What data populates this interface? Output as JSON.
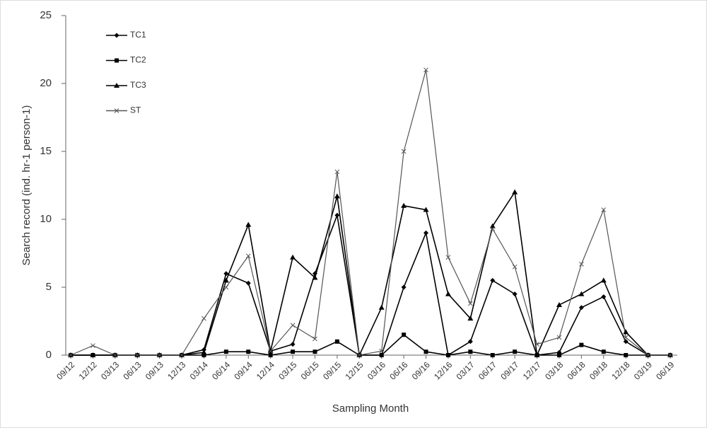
{
  "chart_data": {
    "type": "line",
    "y_label": "Search record (ind. hr-1 person-1)",
    "x_label": "Sampling Month",
    "categories": [
      "09/12",
      "12/12",
      "03/13",
      "06/13",
      "09/13",
      "12/13",
      "03/14",
      "06/14",
      "09/14",
      "12/14",
      "03/15",
      "06/15",
      "09/15",
      "12/15",
      "03/16",
      "06/16",
      "09/16",
      "12/16",
      "03/17",
      "06/17",
      "09/17",
      "12/17",
      "03/18",
      "06/18",
      "09/18",
      "12/18",
      "03/19",
      "06/19"
    ],
    "series": [
      {
        "name": "TC1",
        "color": "#000000",
        "marker": "diamond",
        "values": [
          0,
          0,
          0,
          0,
          0,
          0,
          0.4,
          6,
          5.3,
          0.3,
          0.8,
          6,
          10.3,
          0,
          0,
          5,
          9,
          0,
          1,
          5.5,
          4.5,
          0,
          0.2,
          3.5,
          4.3,
          1,
          0,
          0
        ]
      },
      {
        "name": "TC2",
        "color": "#000000",
        "marker": "square",
        "values": [
          0,
          0,
          0,
          0,
          0,
          0,
          0,
          0.25,
          0.25,
          0,
          0.25,
          0.25,
          1,
          0,
          0,
          1.5,
          0.25,
          0,
          0.25,
          0,
          0.25,
          0,
          0,
          0.75,
          0.25,
          0,
          0,
          0
        ]
      },
      {
        "name": "TC3",
        "color": "#000000",
        "marker": "triangle",
        "values": [
          0,
          0,
          0,
          0,
          0,
          0,
          0.2,
          5.5,
          9.6,
          0.3,
          7.2,
          5.7,
          11.7,
          0,
          3.5,
          11,
          10.7,
          4.5,
          2.7,
          9.5,
          12,
          0,
          3.7,
          4.5,
          5.5,
          1.7,
          0,
          0
        ]
      },
      {
        "name": "ST",
        "color": "#555555",
        "marker": "x",
        "values": [
          0,
          0.7,
          0,
          0,
          0,
          0,
          2.7,
          5,
          7.3,
          0.3,
          2.2,
          1.2,
          13.5,
          0,
          0.3,
          15,
          21,
          7.2,
          3.8,
          9.3,
          6.5,
          0.8,
          1.3,
          6.7,
          10.7,
          1.3,
          0,
          0
        ]
      }
    ],
    "ylim": [
      0,
      25
    ],
    "yticks": [
      0,
      5,
      10,
      15,
      20,
      25
    ],
    "grid": false
  }
}
